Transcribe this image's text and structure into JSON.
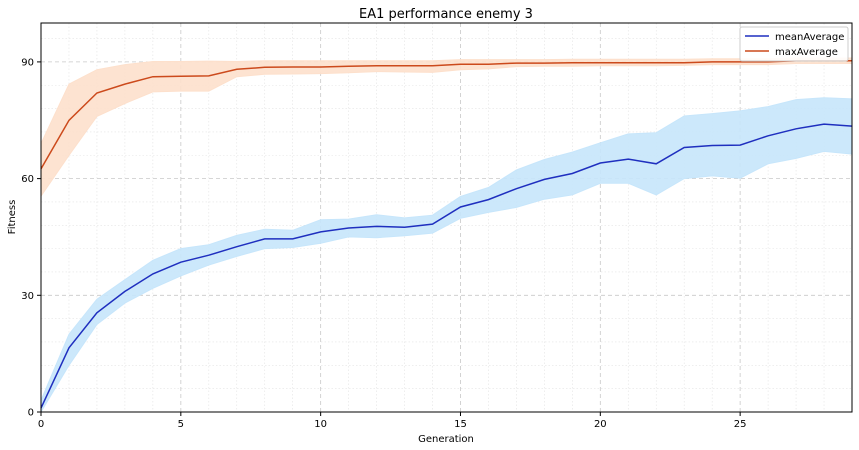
{
  "chart_data": {
    "type": "line",
    "title": "EA1 performance enemy 3",
    "xlabel": "Generation",
    "ylabel": "Fitness",
    "xlim": [
      0,
      29
    ],
    "ylim": [
      0,
      100
    ],
    "xticks": [
      0,
      5,
      10,
      15,
      20,
      25
    ],
    "yticks": [
      0,
      30,
      60,
      90
    ],
    "grid": true,
    "legend_position": "top-right",
    "x": [
      0,
      1,
      2,
      3,
      4,
      5,
      6,
      7,
      8,
      9,
      10,
      11,
      12,
      13,
      14,
      15,
      16,
      17,
      18,
      19,
      20,
      21,
      22,
      23,
      24,
      25,
      26,
      27,
      28,
      29
    ],
    "series": [
      {
        "name": "meanAverage",
        "color": "#1f2fbf",
        "band_color": "#c7e6fb",
        "values": [
          1,
          16.5,
          25.5,
          31,
          35.5,
          38.5,
          40.3,
          42.5,
          44.5,
          44.5,
          46.3,
          47.3,
          47.7,
          47.5,
          48.3,
          52.7,
          54.6,
          57.4,
          59.8,
          61.3,
          64,
          65,
          63.8,
          68,
          68.5,
          68.6,
          71,
          72.8,
          74,
          73.5
        ],
        "lower": [
          0,
          12,
          22.5,
          28,
          31.8,
          35,
          37.8,
          40,
          42,
          42.3,
          43.4,
          45,
          44.8,
          45.3,
          46,
          49.8,
          51.3,
          52.6,
          54.7,
          55.8,
          58.8,
          58.8,
          55.8,
          60,
          60.7,
          60.1,
          63.8,
          65.2,
          67,
          66.3
        ],
        "upper": [
          3,
          20,
          29,
          34,
          39,
          42,
          43,
          45.4,
          47,
          46.7,
          49.4,
          49.6,
          50.7,
          49.9,
          50.6,
          55.4,
          57.7,
          62.2,
          64.9,
          66.8,
          69.2,
          71.5,
          71.8,
          76.1,
          76.7,
          77.4,
          78.5,
          80.3,
          80.8,
          80.5
        ]
      },
      {
        "name": "maxAverage",
        "color": "#cc4a1c",
        "band_color": "#fde0cc",
        "values": [
          62.5,
          75,
          82,
          84.3,
          86.2,
          86.3,
          86.4,
          88.1,
          88.6,
          88.7,
          88.7,
          88.9,
          89,
          89,
          89,
          89.4,
          89.4,
          89.7,
          89.7,
          89.8,
          89.8,
          89.8,
          89.8,
          89.8,
          90,
          90,
          90,
          90.3,
          90.3,
          90.3
        ],
        "lower": [
          55.5,
          66,
          76,
          79.3,
          82.3,
          82.5,
          82.5,
          86.2,
          86.8,
          86.9,
          87,
          87.2,
          87.5,
          87.4,
          87.3,
          88,
          88.2,
          88.8,
          88.9,
          88.9,
          89,
          89,
          89,
          89.1,
          89.3,
          89.3,
          89.3,
          89.6,
          89.6,
          89.6
        ],
        "upper": [
          69,
          84.3,
          88,
          89.3,
          90.1,
          90.1,
          90.2,
          90.1,
          90.3,
          90.3,
          90.3,
          90.3,
          90.3,
          90.3,
          90.3,
          90.6,
          90.6,
          90.6,
          90.6,
          90.7,
          90.7,
          90.7,
          90.7,
          90.7,
          90.8,
          90.8,
          90.8,
          91,
          91,
          91
        ]
      }
    ]
  }
}
